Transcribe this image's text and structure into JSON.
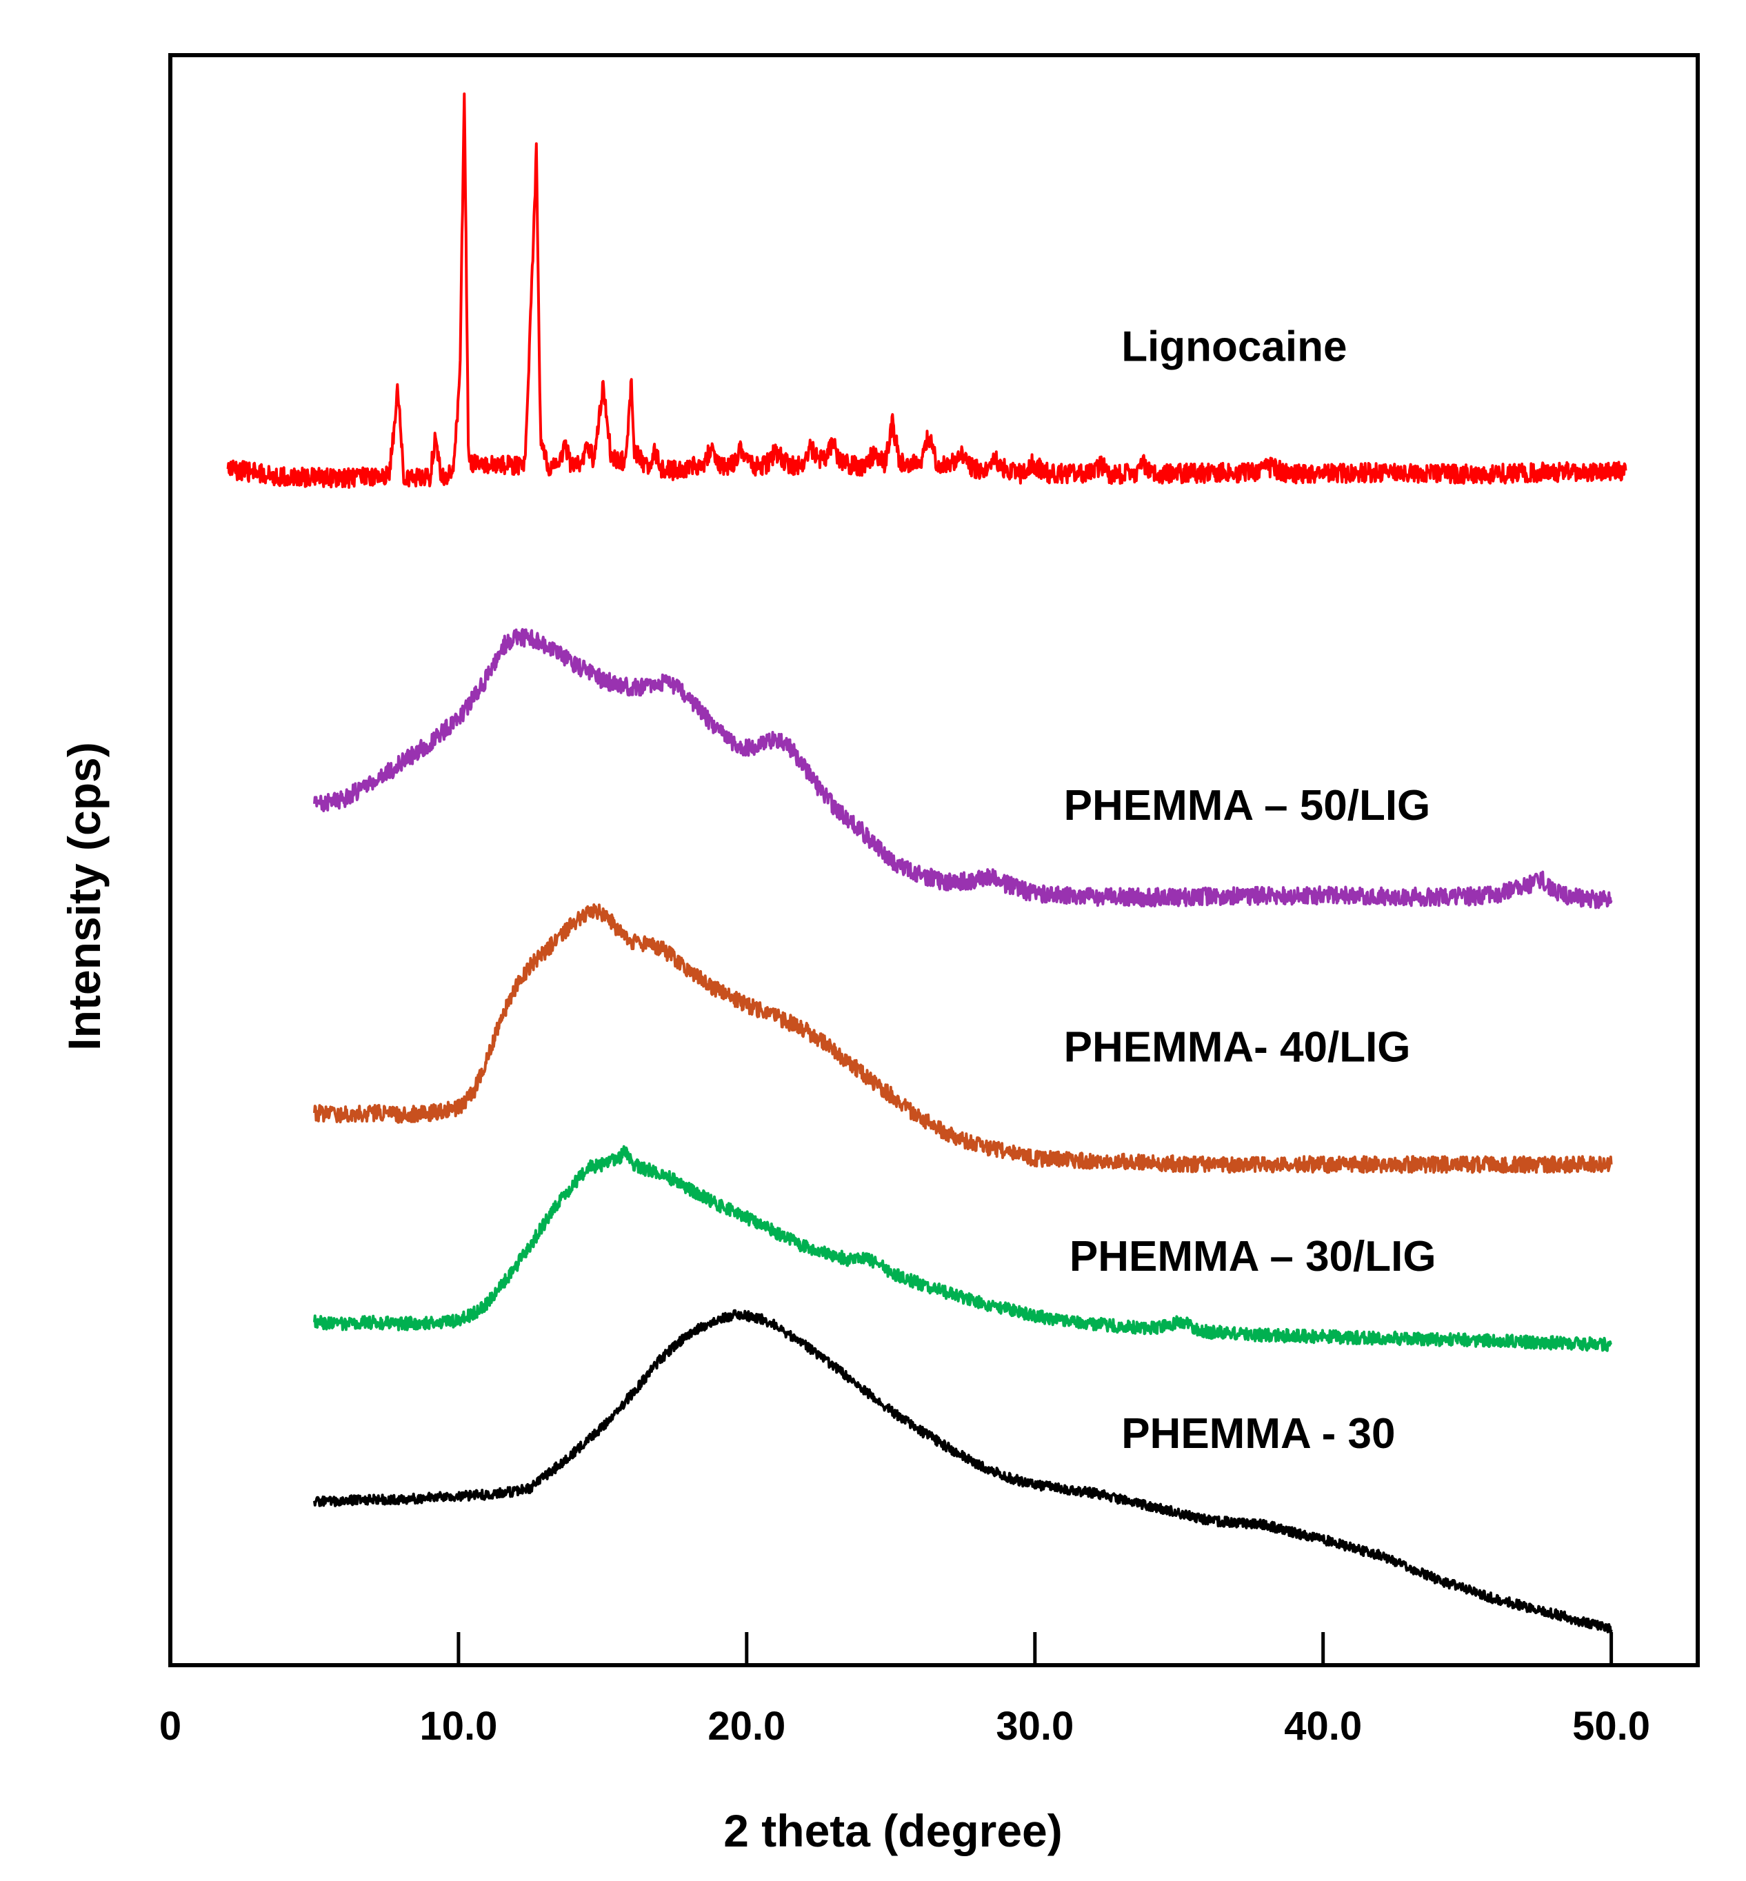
{
  "chart_data": {
    "type": "line",
    "title": "",
    "xlabel": "2 theta (degree)",
    "ylabel": "Intensity (cps)",
    "xlim": [
      0,
      53
    ],
    "ylim": [
      0,
      100
    ],
    "x_ticks": [
      {
        "value": 0,
        "label": "0"
      },
      {
        "value": 10,
        "label": "10.0"
      },
      {
        "value": 20,
        "label": "20.0"
      },
      {
        "value": 30,
        "label": "30.0"
      },
      {
        "value": 40,
        "label": "40.0"
      },
      {
        "value": 50,
        "label": "50.0"
      }
    ],
    "grid": false,
    "legend": "inline labels to the right of each trace",
    "series": [
      {
        "name": "Lignocaine",
        "color": "#ff0000",
        "noise": 0.6,
        "x": [
          2,
          4,
          6,
          7.6,
          7.9,
          8.1,
          8.4,
          9.0,
          9.2,
          9.4,
          9.8,
          10.05,
          10.2,
          10.35,
          10.6,
          11.5,
          12.3,
          12.55,
          12.7,
          12.85,
          13.1,
          13.5,
          13.7,
          13.9,
          14.3,
          14.5,
          14.7,
          15.0,
          15.3,
          15.8,
          16.0,
          16.1,
          16.4,
          16.6,
          16.8,
          17.0,
          17.5,
          18.5,
          18.8,
          19.0,
          19.2,
          19.5,
          19.8,
          20.1,
          20.4,
          20.7,
          21.0,
          21.3,
          21.7,
          22.0,
          22.2,
          22.5,
          22.8,
          23.0,
          23.2,
          23.5,
          24.0,
          24.4,
          24.8,
          25.05,
          25.3,
          25.6,
          26.0,
          26.3,
          26.6,
          27.0,
          27.4,
          27.8,
          28.2,
          28.6,
          29.0,
          29.5,
          29.9,
          30.5,
          32.0,
          32.3,
          32.6,
          33.5,
          33.8,
          34.1,
          35.0,
          37.5,
          38.2,
          38.8,
          40.0,
          42.0,
          44.0,
          46.0,
          48.0,
          50.5
        ],
        "y": [
          74.3,
          73.8,
          73.7,
          73.9,
          79.4,
          73.9,
          73.7,
          73.8,
          76.2,
          73.8,
          74.0,
          80.0,
          97.8,
          74.8,
          74.6,
          74.5,
          74.5,
          86.0,
          94.0,
          76.0,
          74.4,
          74.6,
          75.8,
          74.6,
          74.6,
          75.8,
          74.8,
          79.5,
          75.0,
          74.8,
          79.8,
          75.5,
          74.6,
          74.6,
          75.4,
          74.4,
          74.2,
          74.6,
          75.7,
          74.6,
          74.4,
          74.6,
          75.6,
          74.6,
          74.4,
          74.6,
          75.4,
          74.8,
          74.4,
          74.6,
          75.8,
          74.8,
          75.2,
          76.0,
          74.8,
          74.6,
          74.4,
          75.2,
          74.6,
          77.2,
          74.8,
          74.6,
          74.6,
          76.4,
          74.6,
          74.4,
          75.2,
          74.4,
          74.2,
          74.9,
          74.2,
          74.0,
          74.6,
          74.0,
          74.0,
          74.6,
          74.0,
          74.0,
          74.6,
          74.0,
          74.0,
          74.1,
          74.4,
          74.0,
          74.0,
          74.1,
          74.0,
          74.0,
          74.1,
          74.2
        ]
      },
      {
        "name": "PHEMMA – 50/LIG",
        "color": "#9932b0",
        "noise": 0.55,
        "x": [
          5,
          6,
          7,
          8,
          9,
          10,
          10.8,
          11.3,
          11.6,
          12.0,
          12.5,
          13,
          14,
          15,
          16,
          17,
          17.5,
          18,
          18.5,
          19,
          19.5,
          20,
          20.5,
          21,
          21.5,
          22,
          22.5,
          23,
          24,
          25,
          26,
          27,
          28,
          28.5,
          29,
          30,
          32,
          35,
          38,
          41,
          44,
          46,
          47.3,
          47.6,
          48,
          49,
          50
        ],
        "y": [
          53.5,
          53.8,
          54.8,
          56.0,
          57.3,
          58.8,
          60.8,
          62.3,
          63.4,
          63.8,
          63.8,
          63.3,
          62.2,
          61.2,
          60.7,
          61.0,
          60.8,
          60.0,
          59.0,
          58.0,
          57.3,
          57.0,
          57.2,
          57.5,
          57.0,
          55.8,
          54.5,
          53.4,
          51.8,
          50.0,
          49.1,
          48.6,
          48.8,
          48.9,
          48.5,
          47.9,
          47.7,
          47.7,
          47.8,
          47.8,
          47.7,
          47.8,
          48.6,
          48.8,
          48.0,
          47.6,
          47.5
        ]
      },
      {
        "name": "PHEMMA- 40/LIG",
        "color": "#c8501e",
        "noise": 0.5,
        "x": [
          5,
          6,
          7,
          8,
          9,
          10,
          10.5,
          11,
          11.5,
          12,
          12.5,
          13,
          13.5,
          14,
          14.5,
          14.9,
          15.2,
          15.6,
          16,
          16.5,
          17,
          17.5,
          18,
          19,
          20,
          21,
          22,
          23,
          24,
          25,
          26,
          27,
          28,
          29,
          30,
          32,
          34,
          36,
          40,
          45,
          50
        ],
        "y": [
          34.3,
          34.2,
          34.3,
          34.2,
          34.3,
          34.6,
          35.5,
          37.8,
          40.2,
          42.2,
          43.5,
          44.3,
          45.2,
          46.1,
          46.8,
          46.8,
          46.4,
          45.5,
          44.9,
          44.8,
          44.6,
          43.9,
          43.1,
          41.9,
          41.0,
          40.3,
          39.5,
          38.2,
          36.8,
          35.4,
          34.0,
          33.0,
          32.3,
          31.9,
          31.5,
          31.3,
          31.2,
          31.1,
          31.1,
          31.1,
          31.1
        ]
      },
      {
        "name": "PHEMMA – 30/LIG",
        "color": "#00b050",
        "noise": 0.4,
        "x": [
          5,
          6,
          7,
          8,
          9,
          10,
          10.5,
          11,
          11.5,
          12,
          12.5,
          13,
          13.5,
          14,
          14.5,
          15,
          15.6,
          15.8,
          16,
          16.5,
          17,
          18,
          19,
          20,
          21,
          22,
          23,
          23.5,
          24,
          24.5,
          25,
          26,
          27,
          28,
          29,
          30,
          32,
          34,
          35.3,
          35.5,
          36,
          38,
          40,
          45,
          50
        ],
        "y": [
          21.3,
          21.2,
          21.3,
          21.2,
          21.3,
          21.4,
          21.8,
          22.5,
          23.6,
          24.8,
          26.1,
          27.5,
          28.8,
          29.9,
          30.9,
          31.1,
          31.5,
          32.0,
          31.2,
          30.8,
          30.6,
          29.6,
          28.6,
          27.8,
          26.9,
          26.0,
          25.5,
          25.2,
          25.4,
          25.0,
          24.4,
          23.7,
          23.1,
          22.6,
          22.1,
          21.7,
          21.2,
          20.9,
          21.4,
          20.9,
          20.7,
          20.5,
          20.4,
          20.2,
          19.9
        ]
      },
      {
        "name": "PHEMMA - 30",
        "color": "#000000",
        "noise": 0.3,
        "x": [
          5,
          6,
          7,
          8,
          9,
          10,
          11,
          12,
          12.5,
          13,
          14,
          15,
          16,
          17,
          18,
          19,
          19.7,
          20.5,
          21,
          22,
          23,
          24,
          25,
          26,
          27,
          28,
          29,
          30,
          32,
          34,
          36,
          38,
          40,
          42,
          44,
          46,
          48,
          50
        ],
        "y": [
          10.2,
          10.2,
          10.3,
          10.3,
          10.4,
          10.5,
          10.6,
          10.8,
          11.0,
          11.7,
          13.2,
          14.8,
          16.8,
          19.0,
          20.6,
          21.5,
          21.8,
          21.5,
          21.1,
          19.9,
          18.6,
          17.2,
          15.8,
          14.6,
          13.5,
          12.5,
          11.7,
          11.2,
          10.7,
          9.9,
          9.0,
          8.7,
          7.8,
          6.8,
          5.3,
          4.1,
          3.2,
          2.2
        ]
      }
    ],
    "labels": [
      {
        "text": "Lignocaine",
        "x": 33,
        "y": 81,
        "series": "Lignocaine"
      },
      {
        "text": "PHEMMA – 50/LIG",
        "x": 31,
        "y": 52.5,
        "series": "PHEMMA – 50/LIG"
      },
      {
        "text": "PHEMMA- 40/LIG",
        "x": 31,
        "y": 37.5,
        "series": "PHEMMA- 40/LIG"
      },
      {
        "text": "PHEMMA – 30/LIG",
        "x": 31.2,
        "y": 24.5,
        "series": "PHEMMA – 30/LIG"
      },
      {
        "text": "PHEMMA - 30",
        "x": 33,
        "y": 13.5,
        "series": "PHEMMA - 30"
      }
    ]
  }
}
